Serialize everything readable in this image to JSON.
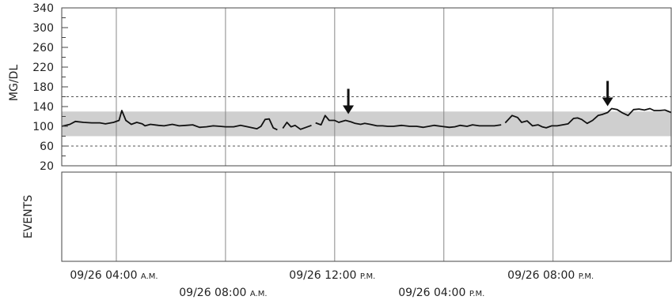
{
  "chart_data": {
    "type": "line",
    "ylabel": "MG/DL",
    "events_label": "EVENTS",
    "ylim": [
      20,
      340
    ],
    "y_ticks": [
      "340",
      "300",
      "260",
      "220",
      "180",
      "140",
      "100",
      "60",
      "20"
    ],
    "target_band": [
      80,
      130
    ],
    "reference_lines": [
      60,
      160
    ],
    "x_start": "09/26 02:00 A.M.",
    "x_end": "09/27 12:20 A.M.",
    "x_ticks": [
      {
        "date": "09/26",
        "time": "04:00",
        "ampm": "A.M.",
        "x_hours": 2
      },
      {
        "date": "09/26",
        "time": "08:00",
        "ampm": "A.M.",
        "x_hours": 6
      },
      {
        "date": "09/26",
        "time": "12:00",
        "ampm": "P.M.",
        "x_hours": 10
      },
      {
        "date": "09/26",
        "time": "04:00",
        "ampm": "P.M.",
        "x_hours": 14
      },
      {
        "date": "09/26",
        "time": "08:00",
        "ampm": "P.M.",
        "x_hours": 18
      }
    ],
    "series": [
      {
        "segments": [
          [
            [
              0,
              100
            ],
            [
              0.3,
              104
            ],
            [
              0.5,
              110
            ],
            [
              0.8,
              108
            ],
            [
              1.1,
              107
            ],
            [
              1.4,
              107
            ],
            [
              1.6,
              105
            ],
            [
              1.9,
              108
            ],
            [
              2.1,
              112
            ],
            [
              2.2,
              132
            ],
            [
              2.35,
              112
            ],
            [
              2.55,
              104
            ],
            [
              2.75,
              108
            ],
            [
              2.95,
              105
            ],
            [
              3.05,
              101
            ],
            [
              3.25,
              104
            ],
            [
              3.55,
              102
            ],
            [
              3.75,
              101
            ],
            [
              4.05,
              104
            ],
            [
              4.3,
              101
            ],
            [
              4.55,
              102
            ],
            [
              4.8,
              103
            ],
            [
              5.05,
              98
            ],
            [
              5.3,
              99
            ],
            [
              5.55,
              101
            ],
            [
              5.8,
              100
            ],
            [
              6.0,
              99
            ],
            [
              6.3,
              99
            ],
            [
              6.55,
              102
            ],
            [
              6.9,
              98
            ],
            [
              7.15,
              95
            ],
            [
              7.3,
              100
            ],
            [
              7.45,
              114
            ],
            [
              7.6,
              115
            ],
            [
              7.75,
              97
            ],
            [
              7.9,
              93
            ]
          ],
          [
            [
              8.1,
              96
            ],
            [
              8.25,
              108
            ],
            [
              8.4,
              99
            ],
            [
              8.55,
              102
            ],
            [
              8.75,
              94
            ],
            [
              8.95,
              98
            ],
            [
              9.15,
              102
            ]
          ],
          [
            [
              9.3,
              107
            ],
            [
              9.5,
              103
            ],
            [
              9.65,
              122
            ],
            [
              9.8,
              112
            ],
            [
              10.0,
              112
            ],
            [
              10.15,
              108
            ],
            [
              10.4,
              112
            ],
            [
              10.6,
              109
            ],
            [
              10.75,
              106
            ],
            [
              10.95,
              104
            ],
            [
              11.1,
              106
            ],
            [
              11.3,
              104
            ],
            [
              11.55,
              101
            ],
            [
              11.75,
              101
            ],
            [
              11.95,
              100
            ],
            [
              12.15,
              100
            ],
            [
              12.45,
              102
            ],
            [
              12.75,
              100
            ],
            [
              13.0,
              100
            ],
            [
              13.25,
              98
            ],
            [
              13.45,
              100
            ],
            [
              13.65,
              102
            ],
            [
              13.9,
              100
            ],
            [
              14.2,
              98
            ],
            [
              14.4,
              99
            ],
            [
              14.6,
              102
            ],
            [
              14.85,
              100
            ],
            [
              15.05,
              103
            ],
            [
              15.3,
              101
            ],
            [
              15.55,
              101
            ],
            [
              15.85,
              101
            ],
            [
              16.1,
              103
            ]
          ],
          [
            [
              16.25,
              107
            ],
            [
              16.5,
              122
            ],
            [
              16.7,
              118
            ],
            [
              16.85,
              108
            ],
            [
              17.05,
              111
            ],
            [
              17.25,
              101
            ],
            [
              17.45,
              103
            ],
            [
              17.6,
              99
            ],
            [
              17.75,
              97
            ],
            [
              17.95,
              101
            ],
            [
              18.15,
              101
            ],
            [
              18.35,
              103
            ],
            [
              18.55,
              105
            ],
            [
              18.75,
              116
            ],
            [
              18.9,
              117
            ],
            [
              19.05,
              114
            ],
            [
              19.25,
              106
            ],
            [
              19.45,
              112
            ],
            [
              19.65,
              122
            ],
            [
              19.8,
              124
            ],
            [
              20.0,
              128
            ],
            [
              20.15,
              136
            ],
            [
              20.35,
              134
            ],
            [
              20.55,
              127
            ],
            [
              20.75,
              122
            ],
            [
              20.95,
              134
            ],
            [
              21.15,
              135
            ],
            [
              21.35,
              133
            ],
            [
              21.55,
              136
            ],
            [
              21.7,
              132
            ],
            [
              21.9,
              132
            ],
            [
              22.1,
              133
            ],
            [
              22.33,
              128
            ]
          ]
        ]
      }
    ],
    "arrows": [
      {
        "x_hours": 10.5,
        "y_value": 112
      },
      {
        "x_hours": 20.0,
        "y_value": 128
      }
    ]
  }
}
